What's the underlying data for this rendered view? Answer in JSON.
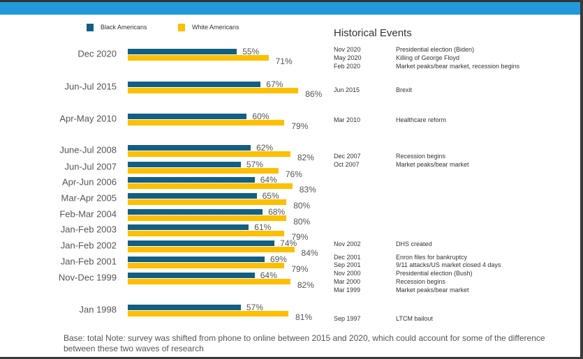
{
  "colors": {
    "black": "#135f83",
    "white": "#fdbf00",
    "header": "#2199da"
  },
  "chart_data": {
    "type": "bar",
    "orientation": "horizontal",
    "legend": [
      "Black Americans",
      "White Americans"
    ],
    "legend_position": "top-left",
    "categories": [
      "Dec 2020",
      "Jun-Jul 2015",
      "Apr-May 2010",
      "June-Jul 2008",
      "Jun-Jul 2007",
      "Apr-Jun 2006",
      "Mar-Apr 2005",
      "Feb-Mar 2004",
      "Jan-Feb 2003",
      "Jan-Feb 2002",
      "Jan-Feb 2001",
      "Nov-Dec 1999",
      "Jan 1998"
    ],
    "series": [
      {
        "name": "Black Americans",
        "values": [
          55,
          67,
          60,
          62,
          57,
          64,
          65,
          68,
          61,
          74,
          69,
          64,
          57
        ]
      },
      {
        "name": "White Americans",
        "values": [
          71,
          86,
          79,
          82,
          76,
          83,
          80,
          80,
          79,
          84,
          79,
          82,
          81
        ]
      }
    ],
    "unit": "%",
    "xlim": [
      0,
      100
    ]
  },
  "events": {
    "title": "Historical Events",
    "items": [
      {
        "date": "Nov 2020",
        "text": "Presidential election (Biden)"
      },
      {
        "date": "May 2020",
        "text": "Killing of George Floyd"
      },
      {
        "date": "Feb 2020",
        "text": "Market peaks/bear market, recession begins"
      },
      {
        "date": "Jun 2015",
        "text": "Brexit"
      },
      {
        "date": "Mar 2010",
        "text": "Healthcare reform"
      },
      {
        "date": "Dec 2007",
        "text": "Recession begins"
      },
      {
        "date": "Oct 2007",
        "text": "Market peaks/bear market"
      },
      {
        "date": "Nov 2002",
        "text": "DHS created"
      },
      {
        "date": "Dec 2001",
        "text": "Enron files for bankruptcy"
      },
      {
        "date": "Sep 2001",
        "text": "9/11 attacks/US market closed 4 days"
      },
      {
        "date": "Nov 2000",
        "text": "Presidential election (Bush)"
      },
      {
        "date": "Mar 2000",
        "text": "Recession begins"
      },
      {
        "date": "Mar 1999",
        "text": "Market peaks/bear market"
      },
      {
        "date": "Sep 1997",
        "text": "LTCM bailout"
      }
    ]
  },
  "note": "Base: total  Note: survey was shifted from phone to online between 2015 and 2020, which could account for some of the difference between these two waves of research"
}
